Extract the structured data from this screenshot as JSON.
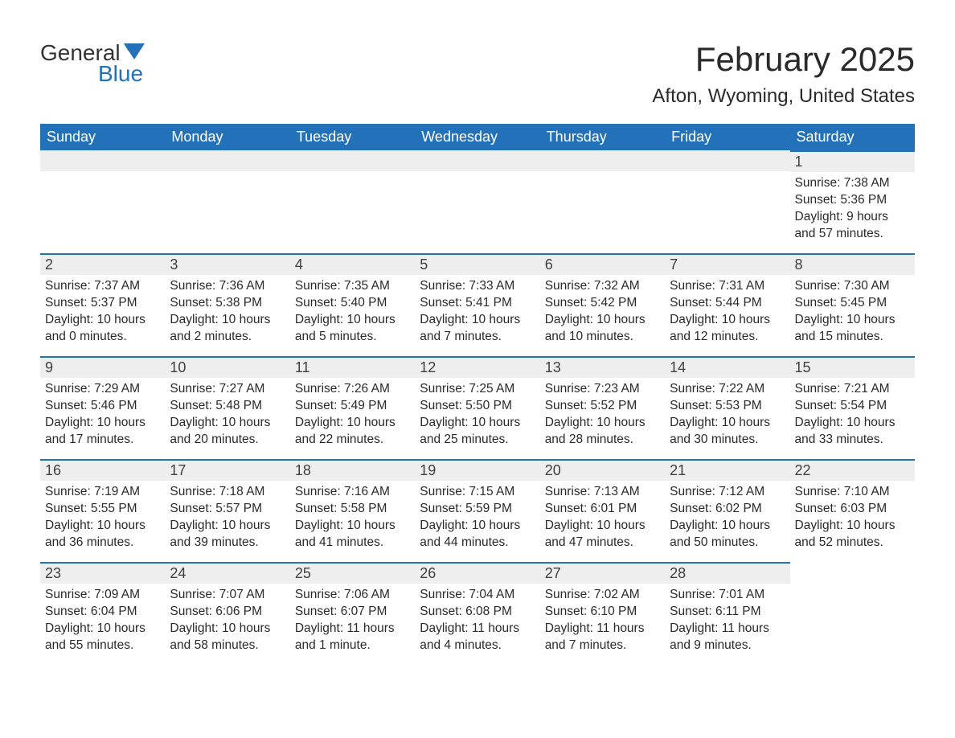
{
  "logo": {
    "text1": "General",
    "text2": "Blue",
    "icon_color": "#2372b9"
  },
  "header": {
    "month": "February 2025",
    "location": "Afton, Wyoming, United States"
  },
  "colors": {
    "header_bg": "#2372b9",
    "header_text": "#ffffff",
    "day_bg": "#eeeeee",
    "border_top": "#2372b9",
    "text": "#2a2a2a"
  },
  "day_labels": [
    "Sunday",
    "Monday",
    "Tuesday",
    "Wednesday",
    "Thursday",
    "Friday",
    "Saturday"
  ],
  "weeks": [
    [
      null,
      null,
      null,
      null,
      null,
      null,
      {
        "n": "1",
        "sunrise": "Sunrise: 7:38 AM",
        "sunset": "Sunset: 5:36 PM",
        "daylight": "Daylight: 9 hours and 57 minutes."
      }
    ],
    [
      {
        "n": "2",
        "sunrise": "Sunrise: 7:37 AM",
        "sunset": "Sunset: 5:37 PM",
        "daylight": "Daylight: 10 hours and 0 minutes."
      },
      {
        "n": "3",
        "sunrise": "Sunrise: 7:36 AM",
        "sunset": "Sunset: 5:38 PM",
        "daylight": "Daylight: 10 hours and 2 minutes."
      },
      {
        "n": "4",
        "sunrise": "Sunrise: 7:35 AM",
        "sunset": "Sunset: 5:40 PM",
        "daylight": "Daylight: 10 hours and 5 minutes."
      },
      {
        "n": "5",
        "sunrise": "Sunrise: 7:33 AM",
        "sunset": "Sunset: 5:41 PM",
        "daylight": "Daylight: 10 hours and 7 minutes."
      },
      {
        "n": "6",
        "sunrise": "Sunrise: 7:32 AM",
        "sunset": "Sunset: 5:42 PM",
        "daylight": "Daylight: 10 hours and 10 minutes."
      },
      {
        "n": "7",
        "sunrise": "Sunrise: 7:31 AM",
        "sunset": "Sunset: 5:44 PM",
        "daylight": "Daylight: 10 hours and 12 minutes."
      },
      {
        "n": "8",
        "sunrise": "Sunrise: 7:30 AM",
        "sunset": "Sunset: 5:45 PM",
        "daylight": "Daylight: 10 hours and 15 minutes."
      }
    ],
    [
      {
        "n": "9",
        "sunrise": "Sunrise: 7:29 AM",
        "sunset": "Sunset: 5:46 PM",
        "daylight": "Daylight: 10 hours and 17 minutes."
      },
      {
        "n": "10",
        "sunrise": "Sunrise: 7:27 AM",
        "sunset": "Sunset: 5:48 PM",
        "daylight": "Daylight: 10 hours and 20 minutes."
      },
      {
        "n": "11",
        "sunrise": "Sunrise: 7:26 AM",
        "sunset": "Sunset: 5:49 PM",
        "daylight": "Daylight: 10 hours and 22 minutes."
      },
      {
        "n": "12",
        "sunrise": "Sunrise: 7:25 AM",
        "sunset": "Sunset: 5:50 PM",
        "daylight": "Daylight: 10 hours and 25 minutes."
      },
      {
        "n": "13",
        "sunrise": "Sunrise: 7:23 AM",
        "sunset": "Sunset: 5:52 PM",
        "daylight": "Daylight: 10 hours and 28 minutes."
      },
      {
        "n": "14",
        "sunrise": "Sunrise: 7:22 AM",
        "sunset": "Sunset: 5:53 PM",
        "daylight": "Daylight: 10 hours and 30 minutes."
      },
      {
        "n": "15",
        "sunrise": "Sunrise: 7:21 AM",
        "sunset": "Sunset: 5:54 PM",
        "daylight": "Daylight: 10 hours and 33 minutes."
      }
    ],
    [
      {
        "n": "16",
        "sunrise": "Sunrise: 7:19 AM",
        "sunset": "Sunset: 5:55 PM",
        "daylight": "Daylight: 10 hours and 36 minutes."
      },
      {
        "n": "17",
        "sunrise": "Sunrise: 7:18 AM",
        "sunset": "Sunset: 5:57 PM",
        "daylight": "Daylight: 10 hours and 39 minutes."
      },
      {
        "n": "18",
        "sunrise": "Sunrise: 7:16 AM",
        "sunset": "Sunset: 5:58 PM",
        "daylight": "Daylight: 10 hours and 41 minutes."
      },
      {
        "n": "19",
        "sunrise": "Sunrise: 7:15 AM",
        "sunset": "Sunset: 5:59 PM",
        "daylight": "Daylight: 10 hours and 44 minutes."
      },
      {
        "n": "20",
        "sunrise": "Sunrise: 7:13 AM",
        "sunset": "Sunset: 6:01 PM",
        "daylight": "Daylight: 10 hours and 47 minutes."
      },
      {
        "n": "21",
        "sunrise": "Sunrise: 7:12 AM",
        "sunset": "Sunset: 6:02 PM",
        "daylight": "Daylight: 10 hours and 50 minutes."
      },
      {
        "n": "22",
        "sunrise": "Sunrise: 7:10 AM",
        "sunset": "Sunset: 6:03 PM",
        "daylight": "Daylight: 10 hours and 52 minutes."
      }
    ],
    [
      {
        "n": "23",
        "sunrise": "Sunrise: 7:09 AM",
        "sunset": "Sunset: 6:04 PM",
        "daylight": "Daylight: 10 hours and 55 minutes."
      },
      {
        "n": "24",
        "sunrise": "Sunrise: 7:07 AM",
        "sunset": "Sunset: 6:06 PM",
        "daylight": "Daylight: 10 hours and 58 minutes."
      },
      {
        "n": "25",
        "sunrise": "Sunrise: 7:06 AM",
        "sunset": "Sunset: 6:07 PM",
        "daylight": "Daylight: 11 hours and 1 minute."
      },
      {
        "n": "26",
        "sunrise": "Sunrise: 7:04 AM",
        "sunset": "Sunset: 6:08 PM",
        "daylight": "Daylight: 11 hours and 4 minutes."
      },
      {
        "n": "27",
        "sunrise": "Sunrise: 7:02 AM",
        "sunset": "Sunset: 6:10 PM",
        "daylight": "Daylight: 11 hours and 7 minutes."
      },
      {
        "n": "28",
        "sunrise": "Sunrise: 7:01 AM",
        "sunset": "Sunset: 6:11 PM",
        "daylight": "Daylight: 11 hours and 9 minutes."
      },
      null
    ]
  ]
}
